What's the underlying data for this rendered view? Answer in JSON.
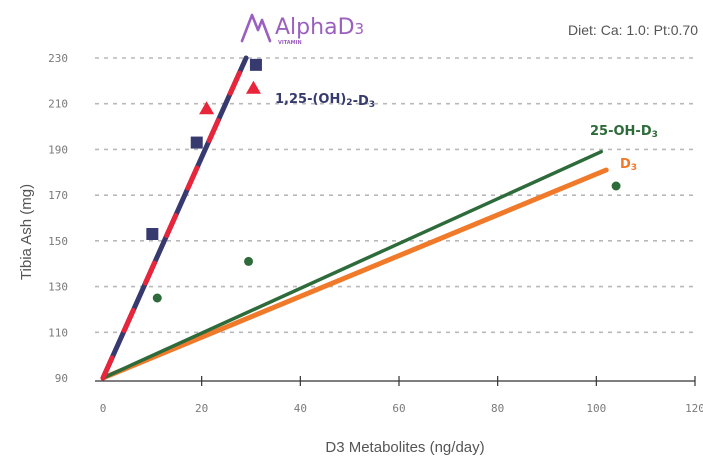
{
  "logo": {
    "name": "Alpha",
    "suffix": "D",
    "sub": "3",
    "tagline": "VITAMIN"
  },
  "note": "Diet: Ca: 1.0: Pt:0.70",
  "colors": {
    "grid": "#b9b9b9",
    "axis": "#333333",
    "dark_navy": "#363a6e",
    "red": "#e8253a",
    "green": "#2e6b3a",
    "orange": "#f07a2a"
  },
  "chart_data": {
    "type": "scatter",
    "xlabel": "D3 Metabolites (ng/day)",
    "ylabel": "Tibia Ash (mg)",
    "xlim": [
      0,
      120
    ],
    "ylim": [
      90,
      230
    ],
    "x_ticks": [
      "0",
      "20",
      "40",
      "60",
      "80",
      "100",
      "120"
    ],
    "y_ticks": [
      "90",
      "110",
      "130",
      "150",
      "170",
      "190",
      "210",
      "230"
    ],
    "grid": "horizontal dashed",
    "series": [
      {
        "name": "1,25-(OH)2-D3",
        "label_main": "1,25-(OH)",
        "label_sub": "2",
        "label_rest": "-D",
        "label_sub2": "3",
        "color": "#363a6e",
        "marker": "square",
        "points": [
          [
            10,
            153
          ],
          [
            19,
            193
          ],
          [
            31,
            227
          ]
        ],
        "trend": [
          [
            0,
            90
          ],
          [
            29,
            230
          ]
        ]
      },
      {
        "name": "",
        "color": "#e8253a",
        "marker": "triangle",
        "points": [
          [
            21,
            208
          ],
          [
            30.5,
            217
          ]
        ],
        "trend": []
      },
      {
        "name": "25-OH-D3",
        "label_main": "25-OH-D",
        "label_sub": "3",
        "color": "#2e6b3a",
        "marker": "circle",
        "points": [
          [
            11,
            125
          ],
          [
            29.5,
            141
          ],
          [
            104,
            174
          ]
        ],
        "trend": [
          [
            0,
            90
          ],
          [
            101,
            189
          ]
        ]
      },
      {
        "name": "D3",
        "label_main": "D",
        "label_sub": "3",
        "color": "#f07a2a",
        "marker": "none",
        "points": [],
        "trend": [
          [
            0,
            90
          ],
          [
            102,
            181
          ]
        ]
      }
    ]
  }
}
